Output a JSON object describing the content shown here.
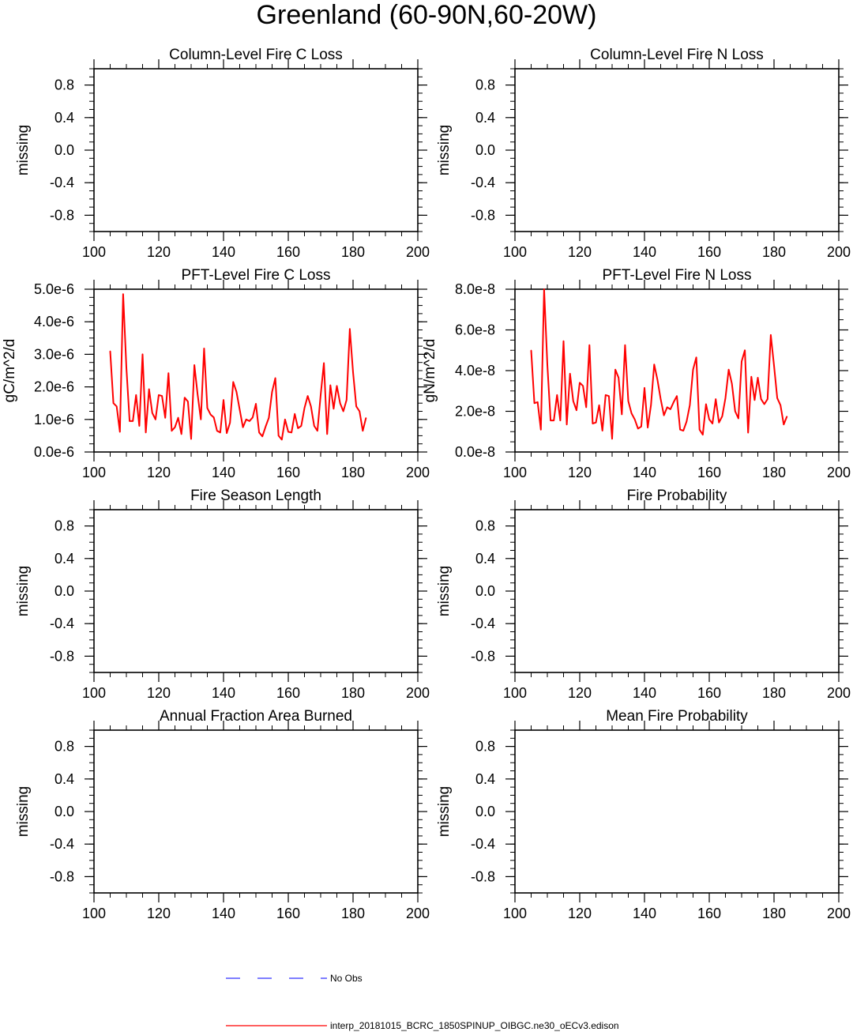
{
  "page_title": "Greenland (60-90N,60-20W)",
  "legend": {
    "obs_label": "No Obs",
    "obs_color": "#3333ff",
    "model_label": "interp_20181015_BCRC_1850SPINUP_OIBGC.ne30_oECv3.edison",
    "model_color": "#ff0000"
  },
  "chart_data": [
    {
      "type": "line",
      "title": "Column-Level Fire C Loss",
      "xlabel": "",
      "ylabel": "missing",
      "xlim": [
        100,
        200
      ],
      "ylim": [
        -1,
        1
      ],
      "xticks": [
        100,
        120,
        140,
        160,
        180,
        200
      ],
      "xtick_labels": [
        "100",
        "120",
        "140",
        "160",
        "180",
        "200"
      ],
      "yticks": [
        -0.8,
        -0.4,
        0.0,
        0.4,
        0.8
      ],
      "ytick_labels": [
        "-0.8",
        "-0.4",
        "0.0",
        "0.4",
        "0.8"
      ],
      "series": []
    },
    {
      "type": "line",
      "title": "Column-Level Fire N Loss",
      "xlabel": "",
      "ylabel": "missing",
      "xlim": [
        100,
        200
      ],
      "ylim": [
        -1,
        1
      ],
      "xticks": [
        100,
        120,
        140,
        160,
        180,
        200
      ],
      "xtick_labels": [
        "100",
        "120",
        "140",
        "160",
        "180",
        "200"
      ],
      "yticks": [
        -0.8,
        -0.4,
        0.0,
        0.4,
        0.8
      ],
      "ytick_labels": [
        "-0.8",
        "-0.4",
        "0.0",
        "0.4",
        "0.8"
      ],
      "series": []
    },
    {
      "type": "line",
      "title": "PFT-Level Fire C Loss",
      "xlabel": "",
      "ylabel": "gC/m^2/d",
      "xlim": [
        100,
        200
      ],
      "ylim": [
        0,
        5e-06
      ],
      "xticks": [
        100,
        120,
        140,
        160,
        180,
        200
      ],
      "xtick_labels": [
        "100",
        "120",
        "140",
        "160",
        "180",
        "200"
      ],
      "yticks": [
        0,
        1e-06,
        2e-06,
        3e-06,
        4e-06,
        5e-06
      ],
      "ytick_labels": [
        "0.0e-6",
        "1.0e-6",
        "2.0e-6",
        "3.0e-6",
        "4.0e-6",
        "5.0e-6"
      ],
      "series": [
        {
          "color": "#ff0000",
          "x": [
            105,
            106,
            107,
            108,
            109,
            110,
            111,
            112,
            113,
            114,
            115,
            116,
            117,
            118,
            119,
            120,
            121,
            122,
            123,
            124,
            125,
            126,
            127,
            128,
            129,
            130,
            131,
            132,
            133,
            134,
            135,
            136,
            137,
            138,
            139,
            140,
            141,
            142,
            143,
            144,
            145,
            146,
            147,
            148,
            149,
            150,
            151,
            152,
            153,
            154,
            155,
            156,
            157,
            158,
            159,
            160,
            161,
            162,
            163,
            164,
            165,
            166,
            167,
            168,
            169,
            170,
            171,
            172,
            173,
            174,
            175,
            176,
            177,
            178,
            179,
            180,
            181,
            182,
            183,
            184
          ],
          "y": [
            3.1e-06,
            1.5e-06,
            1.4e-06,
            6.2e-07,
            4.85e-06,
            2.6e-06,
            9.5e-07,
            9.5e-07,
            1.75e-06,
            8e-07,
            3e-06,
            6e-07,
            1.93e-06,
            1.2e-06,
            1e-06,
            1.75e-06,
            1.72e-06,
            1.05e-06,
            2.42e-06,
            6.5e-07,
            7.6e-07,
            1.05e-06,
            5.5e-07,
            1.67e-06,
            1.55e-06,
            4e-07,
            2.67e-06,
            1.77e-06,
            1e-06,
            3.18e-06,
            1.35e-06,
            1.15e-06,
            1.06e-06,
            6.5e-07,
            6e-07,
            1.6e-06,
            5.8e-07,
            9e-07,
            2.15e-06,
            1.85e-06,
            1.3e-06,
            7.6e-07,
            1e-06,
            9.5e-07,
            1.06e-06,
            1.48e-06,
            6e-07,
            4.8e-07,
            7.8e-07,
            1.05e-06,
            1.85e-06,
            2.27e-06,
            5e-07,
            3.8e-07,
            1e-06,
            6.2e-07,
            6e-07,
            1.17e-06,
            7.3e-07,
            8e-07,
            1.35e-06,
            1.72e-06,
            1.4e-06,
            8e-07,
            6.5e-07,
            1.75e-06,
            2.73e-06,
            5.5e-07,
            2.05e-06,
            1.33e-06,
            2.03e-06,
            1.5e-06,
            1.25e-06,
            1.6e-06,
            3.78e-06,
            2.45e-06,
            1.4e-06,
            1.25e-06,
            6.5e-07,
            1.05e-06
          ]
        }
      ]
    },
    {
      "type": "line",
      "title": "PFT-Level Fire N Loss",
      "xlabel": "",
      "ylabel": "gN/m^2/d",
      "xlim": [
        100,
        200
      ],
      "ylim": [
        0,
        8e-08
      ],
      "xticks": [
        100,
        120,
        140,
        160,
        180,
        200
      ],
      "xtick_labels": [
        "100",
        "120",
        "140",
        "160",
        "180",
        "200"
      ],
      "yticks": [
        0,
        2e-08,
        4e-08,
        6e-08,
        8e-08
      ],
      "ytick_labels": [
        "0.0e-8",
        "2.0e-8",
        "4.0e-8",
        "6.0e-8",
        "8.0e-8"
      ],
      "series": [
        {
          "color": "#ff0000",
          "x": [
            105,
            106,
            107,
            108,
            109,
            110,
            111,
            112,
            113,
            114,
            115,
            116,
            117,
            118,
            119,
            120,
            121,
            122,
            123,
            124,
            125,
            126,
            127,
            128,
            129,
            130,
            131,
            132,
            133,
            134,
            135,
            136,
            137,
            138,
            139,
            140,
            141,
            142,
            143,
            144,
            145,
            146,
            147,
            148,
            149,
            150,
            151,
            152,
            153,
            154,
            155,
            156,
            157,
            158,
            159,
            160,
            161,
            162,
            163,
            164,
            165,
            166,
            167,
            168,
            169,
            170,
            171,
            172,
            173,
            174,
            175,
            176,
            177,
            178,
            179,
            180,
            181,
            182,
            183,
            184
          ],
          "y": [
            5e-08,
            2.4e-08,
            2.45e-08,
            1.1e-08,
            8e-08,
            4.3e-08,
            1.55e-08,
            1.55e-08,
            2.8e-08,
            1.55e-08,
            5.45e-08,
            1.35e-08,
            3.85e-08,
            2.5e-08,
            2.05e-08,
            3.4e-08,
            3.25e-08,
            2.2e-08,
            5.25e-08,
            1.4e-08,
            1.45e-08,
            2.3e-08,
            1.05e-08,
            2.8e-08,
            2.75e-08,
            6.5e-09,
            4.05e-08,
            3.65e-08,
            1.85e-08,
            5.25e-08,
            2.5e-08,
            1.9e-08,
            1.6e-08,
            1.15e-08,
            1.25e-08,
            3.15e-08,
            1.2e-08,
            2.3e-08,
            4.3e-08,
            3.55e-08,
            2.6e-08,
            1.8e-08,
            2.2e-08,
            2.1e-08,
            2.45e-08,
            2.75e-08,
            1.1e-08,
            1.05e-08,
            1.5e-08,
            2.3e-08,
            4.05e-08,
            4.65e-08,
            1.1e-08,
            8.5e-09,
            2.35e-08,
            1.6e-08,
            1.4e-08,
            2.6e-08,
            1.45e-08,
            1.75e-08,
            2.65e-08,
            4.05e-08,
            3.35e-08,
            2e-08,
            1.65e-08,
            4.45e-08,
            5e-08,
            9.5e-09,
            3.7e-08,
            2.55e-08,
            3.65e-08,
            2.6e-08,
            2.35e-08,
            2.6e-08,
            5.75e-08,
            4.25e-08,
            2.65e-08,
            2.3e-08,
            1.35e-08,
            1.75e-08
          ]
        }
      ]
    },
    {
      "type": "line",
      "title": "Fire Season Length",
      "xlabel": "",
      "ylabel": "missing",
      "xlim": [
        100,
        200
      ],
      "ylim": [
        -1,
        1
      ],
      "xticks": [
        100,
        120,
        140,
        160,
        180,
        200
      ],
      "xtick_labels": [
        "100",
        "120",
        "140",
        "160",
        "180",
        "200"
      ],
      "yticks": [
        -0.8,
        -0.4,
        0.0,
        0.4,
        0.8
      ],
      "ytick_labels": [
        "-0.8",
        "-0.4",
        "0.0",
        "0.4",
        "0.8"
      ],
      "series": []
    },
    {
      "type": "line",
      "title": "Fire Probability",
      "xlabel": "",
      "ylabel": "missing",
      "xlim": [
        100,
        200
      ],
      "ylim": [
        -1,
        1
      ],
      "xticks": [
        100,
        120,
        140,
        160,
        180,
        200
      ],
      "xtick_labels": [
        "100",
        "120",
        "140",
        "160",
        "180",
        "200"
      ],
      "yticks": [
        -0.8,
        -0.4,
        0.0,
        0.4,
        0.8
      ],
      "ytick_labels": [
        "-0.8",
        "-0.4",
        "0.0",
        "0.4",
        "0.8"
      ],
      "series": []
    },
    {
      "type": "line",
      "title": "Annual Fraction Area Burned",
      "xlabel": "",
      "ylabel": "missing",
      "xlim": [
        100,
        200
      ],
      "ylim": [
        -1,
        1
      ],
      "xticks": [
        100,
        120,
        140,
        160,
        180,
        200
      ],
      "xtick_labels": [
        "100",
        "120",
        "140",
        "160",
        "180",
        "200"
      ],
      "yticks": [
        -0.8,
        -0.4,
        0.0,
        0.4,
        0.8
      ],
      "ytick_labels": [
        "-0.8",
        "-0.4",
        "0.0",
        "0.4",
        "0.8"
      ],
      "series": []
    },
    {
      "type": "line",
      "title": "Mean Fire Probability",
      "xlabel": "",
      "ylabel": "missing",
      "xlim": [
        100,
        200
      ],
      "ylim": [
        -1,
        1
      ],
      "xticks": [
        100,
        120,
        140,
        160,
        180,
        200
      ],
      "xtick_labels": [
        "100",
        "120",
        "140",
        "160",
        "180",
        "200"
      ],
      "yticks": [
        -0.8,
        -0.4,
        0.0,
        0.4,
        0.8
      ],
      "ytick_labels": [
        "-0.8",
        "-0.4",
        "0.0",
        "0.4",
        "0.8"
      ],
      "series": []
    }
  ]
}
